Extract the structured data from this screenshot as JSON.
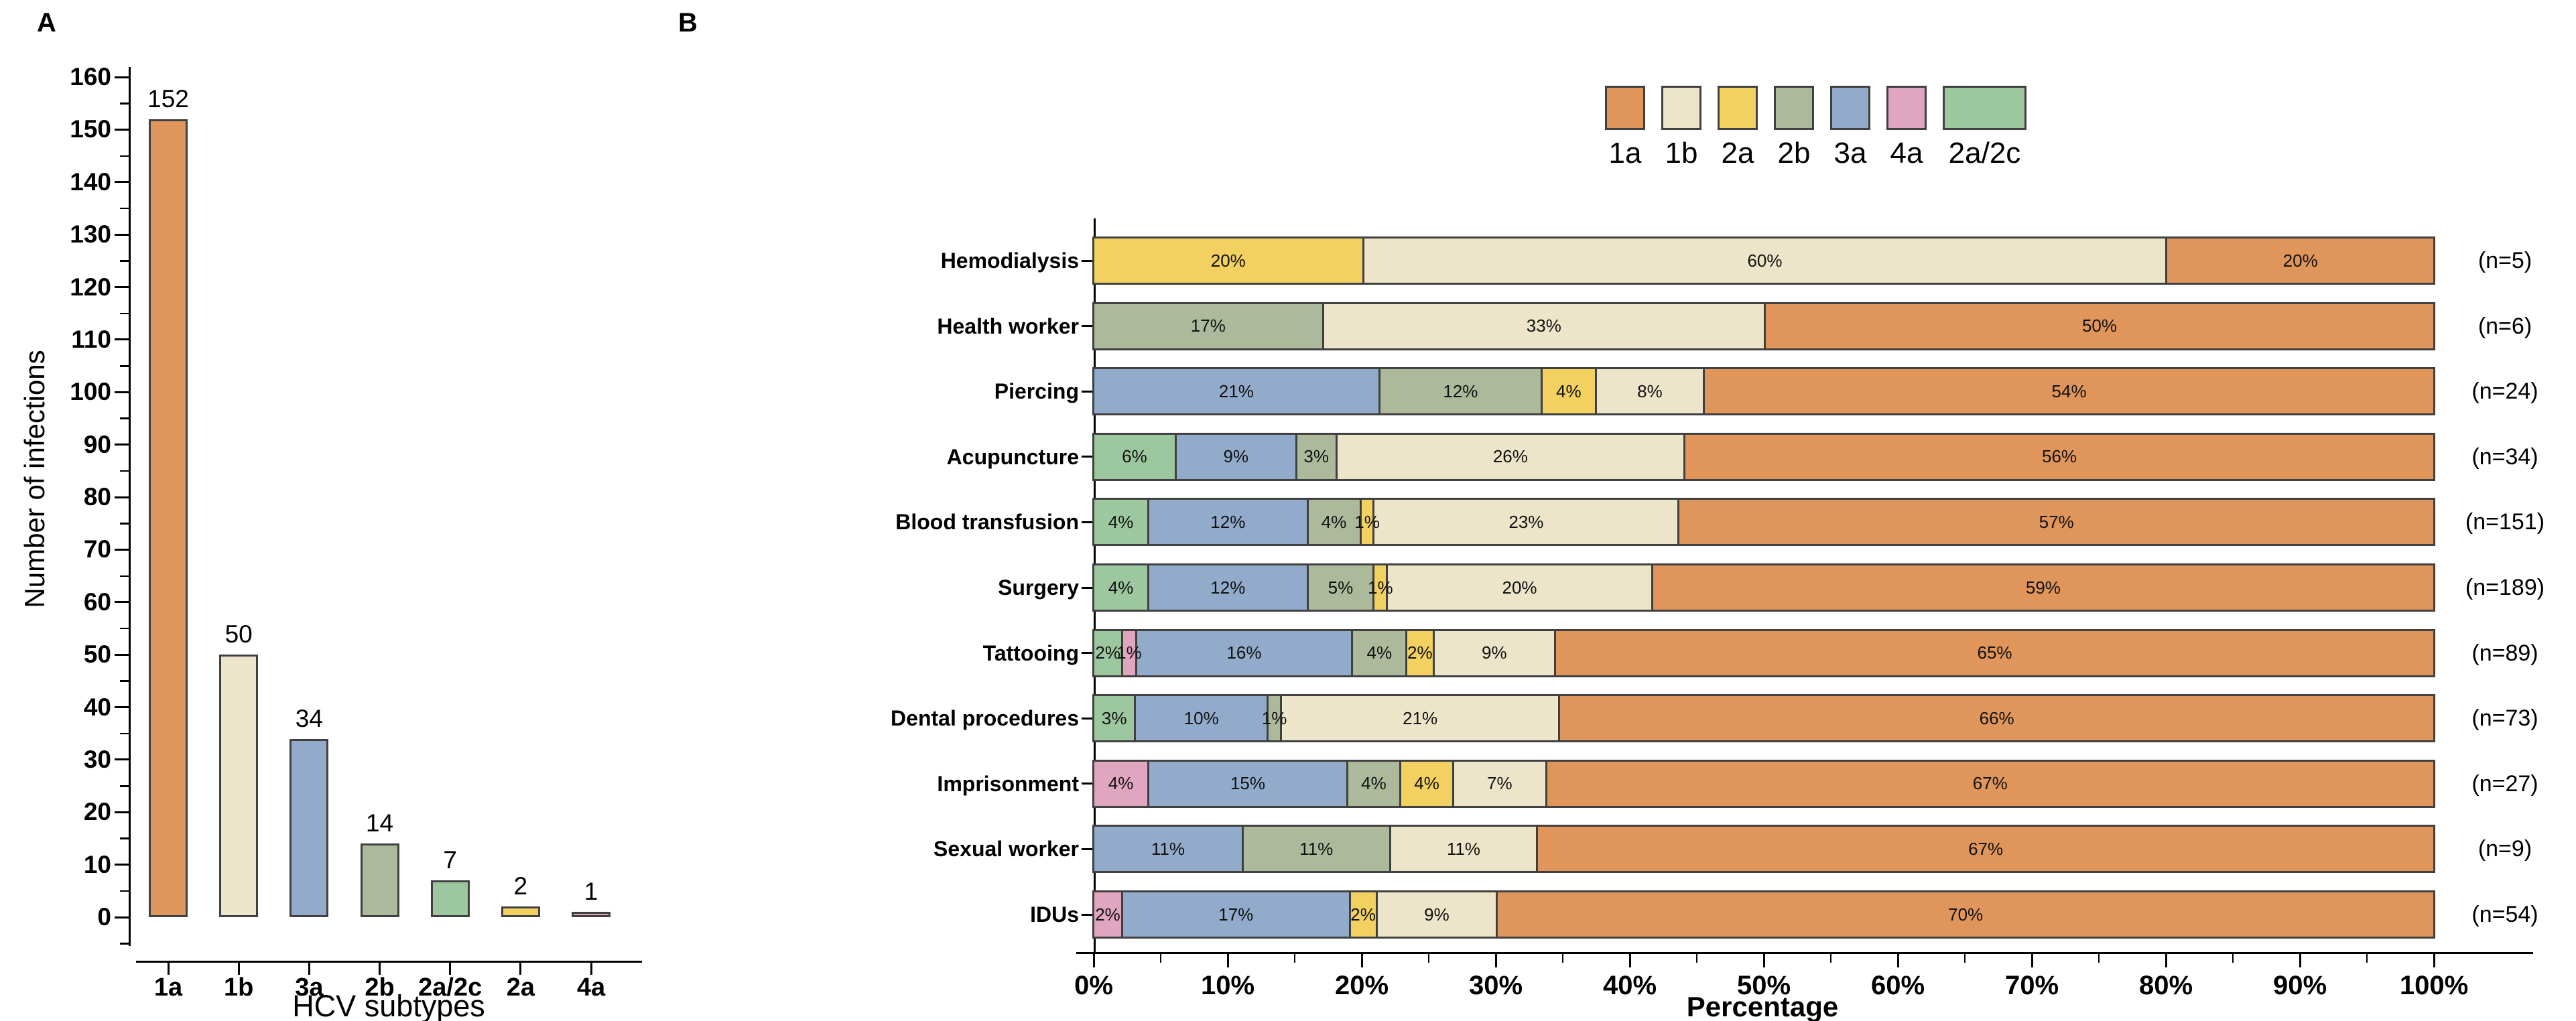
{
  "figure": {
    "panel_a_letter": "A",
    "panel_b_letter": "B"
  },
  "subtype_colors": {
    "1a": "#E0955B",
    "1b": "#EDE5C9",
    "2a": "#F2D161",
    "2b": "#ACB99B",
    "3a": "#92ABCB",
    "4a": "#E0A5BF",
    "2a/2c": "#9DC79F"
  },
  "chart_data": [
    {
      "id": "panel_a",
      "type": "bar",
      "title": "",
      "categories": [
        "1a",
        "1b",
        "3a",
        "2b",
        "2a/2c",
        "2a",
        "4a"
      ],
      "values": [
        152,
        50,
        34,
        14,
        7,
        2,
        1
      ],
      "bar_labels": [
        "152",
        "50",
        "34",
        "14",
        "7",
        "2",
        "1"
      ],
      "bar_subtypes": [
        "1a",
        "1b",
        "3a",
        "2b",
        "2a/2c",
        "2a",
        "4a"
      ],
      "xlabel": "HCV subtypes",
      "ylabel": "Number of infections",
      "ylim": [
        0,
        160
      ],
      "y_tick_labels": [
        "0",
        "10",
        "20",
        "30",
        "40",
        "50",
        "60",
        "70",
        "80",
        "90",
        "100",
        "110",
        "120",
        "130",
        "140",
        "150",
        "160"
      ],
      "y_minor_step": 5,
      "grid": false
    },
    {
      "id": "panel_b",
      "type": "stacked-bar-horizontal",
      "title": "",
      "xlabel": "Percentage",
      "xlim": [
        0,
        100
      ],
      "x_tick_labels": [
        "0%",
        "10%",
        "20%",
        "30%",
        "40%",
        "50%",
        "60%",
        "70%",
        "80%",
        "90%",
        "100%"
      ],
      "x_minor_step": 5,
      "legend": {
        "position": "top-right",
        "entries": [
          "1a",
          "1b",
          "2a",
          "2b",
          "3a",
          "4a",
          "2a/2c"
        ]
      },
      "stack_order": [
        "2a/2c",
        "4a",
        "3a",
        "2b",
        "2a",
        "1b",
        "1a"
      ],
      "rows": [
        {
          "category": "Hemodialysis",
          "n_label": "(n=5)",
          "segments": [
            {
              "subtype": "2a",
              "pct": 20,
              "label": "20%"
            },
            {
              "subtype": "1b",
              "pct": 60,
              "label": "60%"
            },
            {
              "subtype": "1a",
              "pct": 20,
              "label": "20%"
            }
          ]
        },
        {
          "category": "Health worker",
          "n_label": "(n=6)",
          "segments": [
            {
              "subtype": "2b",
              "pct": 17,
              "label": "17%"
            },
            {
              "subtype": "1b",
              "pct": 33,
              "label": "33%"
            },
            {
              "subtype": "1a",
              "pct": 50,
              "label": "50%"
            }
          ]
        },
        {
          "category": "Piercing",
          "n_label": "(n=24)",
          "segments": [
            {
              "subtype": "3a",
              "pct": 21,
              "label": "21%"
            },
            {
              "subtype": "2b",
              "pct": 12,
              "label": "12%"
            },
            {
              "subtype": "2a",
              "pct": 4,
              "label": "4%"
            },
            {
              "subtype": "1b",
              "pct": 8,
              "label": "8%"
            },
            {
              "subtype": "1a",
              "pct": 54,
              "label": "54%"
            }
          ]
        },
        {
          "category": "Acupuncture",
          "n_label": "(n=34)",
          "segments": [
            {
              "subtype": "2a/2c",
              "pct": 6,
              "label": "6%"
            },
            {
              "subtype": "3a",
              "pct": 9,
              "label": "9%"
            },
            {
              "subtype": "2b",
              "pct": 3,
              "label": "3%"
            },
            {
              "subtype": "1b",
              "pct": 26,
              "label": "26%"
            },
            {
              "subtype": "1a",
              "pct": 56,
              "label": "56%"
            }
          ]
        },
        {
          "category": "Blood transfusion",
          "n_label": "(n=151)",
          "segments": [
            {
              "subtype": "2a/2c",
              "pct": 4,
              "label": "4%"
            },
            {
              "subtype": "3a",
              "pct": 12,
              "label": "12%"
            },
            {
              "subtype": "2b",
              "pct": 4,
              "label": "4%"
            },
            {
              "subtype": "2a",
              "pct": 1,
              "label": "1%"
            },
            {
              "subtype": "1b",
              "pct": 23,
              "label": "23%"
            },
            {
              "subtype": "1a",
              "pct": 57,
              "label": "57%"
            }
          ]
        },
        {
          "category": "Surgery",
          "n_label": "(n=189)",
          "segments": [
            {
              "subtype": "2a/2c",
              "pct": 4,
              "label": "4%"
            },
            {
              "subtype": "3a",
              "pct": 12,
              "label": "12%"
            },
            {
              "subtype": "2b",
              "pct": 5,
              "label": "5%"
            },
            {
              "subtype": "2a",
              "pct": 1,
              "label": "1%"
            },
            {
              "subtype": "1b",
              "pct": 20,
              "label": "20%"
            },
            {
              "subtype": "1a",
              "pct": 59,
              "label": "59%"
            }
          ]
        },
        {
          "category": "Tattooing",
          "n_label": "(n=89)",
          "segments": [
            {
              "subtype": "2a/2c",
              "pct": 2,
              "label": "2%"
            },
            {
              "subtype": "4a",
              "pct": 1,
              "label": "1%"
            },
            {
              "subtype": "3a",
              "pct": 16,
              "label": "16%"
            },
            {
              "subtype": "2b",
              "pct": 4,
              "label": "4%"
            },
            {
              "subtype": "2a",
              "pct": 2,
              "label": "2%"
            },
            {
              "subtype": "1b",
              "pct": 9,
              "label": "9%"
            },
            {
              "subtype": "1a",
              "pct": 65,
              "label": "65%"
            }
          ]
        },
        {
          "category": "Dental procedures",
          "n_label": "(n=73)",
          "segments": [
            {
              "subtype": "2a/2c",
              "pct": 3,
              "label": "3%"
            },
            {
              "subtype": "3a",
              "pct": 10,
              "label": "10%"
            },
            {
              "subtype": "2b",
              "pct": 1,
              "label": "1%"
            },
            {
              "subtype": "1b",
              "pct": 21,
              "label": "21%"
            },
            {
              "subtype": "1a",
              "pct": 66,
              "label": "66%"
            }
          ]
        },
        {
          "category": "Imprisonment",
          "n_label": "(n=27)",
          "segments": [
            {
              "subtype": "4a",
              "pct": 4,
              "label": "4%"
            },
            {
              "subtype": "3a",
              "pct": 15,
              "label": "15%"
            },
            {
              "subtype": "2b",
              "pct": 4,
              "label": "4%"
            },
            {
              "subtype": "2a",
              "pct": 4,
              "label": "4%"
            },
            {
              "subtype": "1b",
              "pct": 7,
              "label": "7%"
            },
            {
              "subtype": "1a",
              "pct": 67,
              "label": "67%"
            }
          ]
        },
        {
          "category": "Sexual worker",
          "n_label": "(n=9)",
          "segments": [
            {
              "subtype": "3a",
              "pct": 11,
              "label": "11%"
            },
            {
              "subtype": "2b",
              "pct": 11,
              "label": "11%"
            },
            {
              "subtype": "1b",
              "pct": 11,
              "label": "11%"
            },
            {
              "subtype": "1a",
              "pct": 67,
              "label": "67%"
            }
          ]
        },
        {
          "category": "IDUs",
          "n_label": "(n=54)",
          "segments": [
            {
              "subtype": "4a",
              "pct": 2,
              "label": "2%"
            },
            {
              "subtype": "3a",
              "pct": 17,
              "label": "17%"
            },
            {
              "subtype": "2a",
              "pct": 2,
              "label": "2%"
            },
            {
              "subtype": "1b",
              "pct": 9,
              "label": "9%"
            },
            {
              "subtype": "1a",
              "pct": 70,
              "label": "70%"
            }
          ]
        }
      ]
    }
  ]
}
